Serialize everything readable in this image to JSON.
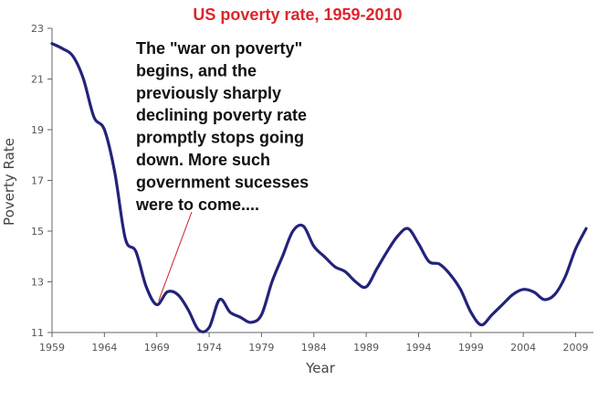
{
  "chart_data": {
    "type": "line",
    "title": "US poverty rate, 1959-2010",
    "xlabel": "Year",
    "ylabel": "Poverty Rate",
    "xlim": [
      1959,
      2010
    ],
    "ylim": [
      11,
      23
    ],
    "xticks": [
      "1959",
      "1964",
      "1969",
      "1974",
      "1979",
      "1984",
      "1989",
      "1994",
      "1999",
      "2004",
      "2009"
    ],
    "yticks": [
      "11",
      "13",
      "15",
      "17",
      "19",
      "21",
      "23"
    ],
    "grid": false,
    "line_color": "#23237a",
    "series": [
      {
        "x": [
          1959,
          1960,
          1961,
          1962,
          1963,
          1964,
          1965,
          1966,
          1967,
          1968,
          1969,
          1970,
          1971,
          1972,
          1973,
          1974,
          1975,
          1976,
          1977,
          1978,
          1979,
          1980,
          1981,
          1982,
          1983,
          1984,
          1985,
          1986,
          1987,
          1988,
          1989,
          1990,
          1991,
          1992,
          1993,
          1994,
          1995,
          1996,
          1997,
          1998,
          1999,
          2000,
          2001,
          2002,
          2003,
          2004,
          2005,
          2006,
          2007,
          2008,
          2009,
          2010
        ],
        "y": [
          22.4,
          22.2,
          21.9,
          21.0,
          19.5,
          19.0,
          17.3,
          14.7,
          14.2,
          12.8,
          12.1,
          12.6,
          12.5,
          11.9,
          11.1,
          11.2,
          12.3,
          11.8,
          11.6,
          11.4,
          11.7,
          13.0,
          14.0,
          15.0,
          15.2,
          14.4,
          14.0,
          13.6,
          13.4,
          13.0,
          12.8,
          13.5,
          14.2,
          14.8,
          15.1,
          14.5,
          13.8,
          13.7,
          13.3,
          12.7,
          11.8,
          11.3,
          11.7,
          12.1,
          12.5,
          12.7,
          12.6,
          12.3,
          12.5,
          13.2,
          14.3,
          15.1
        ]
      }
    ],
    "annotation": {
      "lines": [
        "The \"war on poverty\"",
        "begins, and the",
        "previously sharply",
        "declining poverty rate",
        "promptly stops going",
        "down. More such",
        "government sucesses",
        "were to come...."
      ],
      "pointer_x": 1969,
      "pointer_y": 12.1,
      "pointer_color": "#cc2222"
    }
  }
}
